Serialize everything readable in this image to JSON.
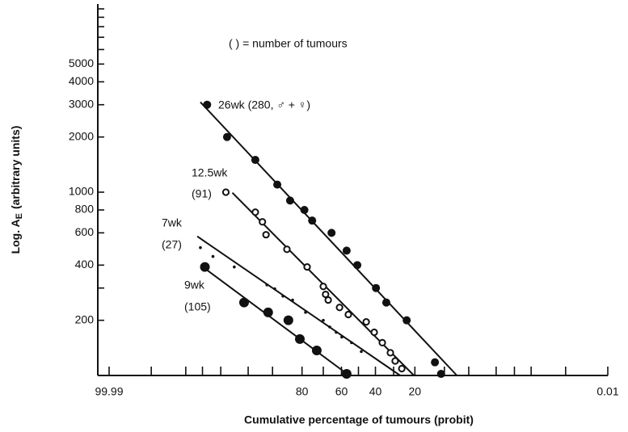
{
  "chart_data": {
    "type": "scatter",
    "annotation": "(     ) = number of tumours",
    "xlabel": "Cumulative percentage of tumours (probit)",
    "ylabel": {
      "main": "Log. A",
      "sub": "E",
      "rest": "(arbitrary units)"
    },
    "xscale": "probit",
    "yscale": "log",
    "xlim": [
      99.99,
      0.01
    ],
    "xticks": [
      99.99,
      80,
      60,
      40,
      20,
      0.01
    ],
    "minor_xticks": [
      99.9,
      99.5,
      99,
      98,
      95,
      90,
      70,
      50,
      30,
      10,
      5,
      2,
      1,
      0.5,
      0.1
    ],
    "ylim": [
      100,
      10000
    ],
    "yticks": [
      200,
      400,
      600,
      800,
      1000,
      2000,
      3000,
      4000,
      5000
    ],
    "minor_yticks": [
      100,
      300,
      6000,
      7000,
      8000,
      9000,
      10000
    ],
    "color": "#111111",
    "series": [
      {
        "label_lines": [
          "26wk (280, ♂ + ♀)"
        ],
        "marker": "filled",
        "x": [
          98.8,
          97.5,
          93.8,
          88.7,
          84.6,
          79,
          75.5,
          65.6,
          57,
          50.7,
          39.7,
          33.9,
          23.6,
          12.7,
          10.9
        ],
        "values": [
          3000,
          2000,
          1500,
          1100,
          900,
          800,
          700,
          600,
          480,
          400,
          300,
          250,
          200,
          118,
          102
        ],
        "fit": {
          "x": [
            99.08,
            7.1
          ],
          "y": [
            3100,
            100
          ]
        }
      },
      {
        "label_lines": [
          "12.5wk",
          "(91)"
        ],
        "marker": "open",
        "x": [
          97.6,
          93.8,
          92.4,
          91.6,
          85.7,
          77.8,
          70,
          68.8,
          67.4,
          61.1,
          56,
          45.4,
          40.7,
          36.1,
          31.7,
          29.2,
          25.9
        ],
        "values": [
          1000,
          778,
          689,
          586,
          488,
          391,
          306,
          277,
          258,
          235,
          215,
          196,
          172,
          151,
          133,
          120,
          109
        ],
        "fit": {
          "x": [
            97.0,
            20.4
          ],
          "y": [
            993,
            100
          ]
        }
      },
      {
        "label_lines": [
          "7wk",
          "(27)"
        ],
        "marker": "dot",
        "x": [
          99.08,
          98.5,
          96.8,
          91.4,
          89.4,
          87,
          83.7,
          78.5,
          70,
          66.6,
          63,
          59.8,
          54.1,
          48.3
        ],
        "values": [
          498,
          446,
          391,
          312,
          297,
          271,
          258,
          221,
          200,
          184,
          172,
          162,
          151,
          135
        ],
        "fit": {
          "x": [
            99.19,
            26.7
          ],
          "y": [
            574,
            100
          ]
        }
      },
      {
        "label_lines": [
          "9wk",
          "(105)"
        ],
        "marker": "large",
        "x": [
          98.9,
          95.6,
          91.1,
          85.2,
          80.9,
          73.3,
          57
        ],
        "values": [
          391,
          250,
          221,
          200,
          158,
          137,
          102
        ],
        "fit": {
          "x": [
            99.02,
            55.5
          ],
          "y": [
            394,
            100
          ]
        }
      }
    ]
  }
}
